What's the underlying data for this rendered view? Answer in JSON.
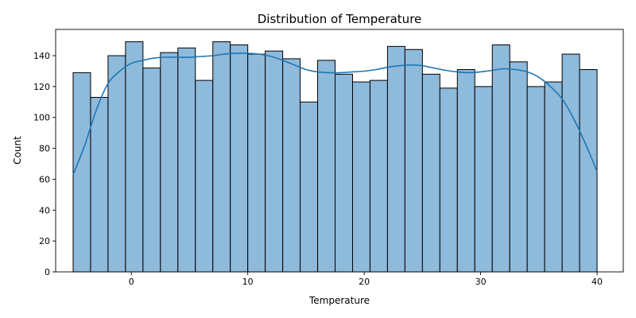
{
  "chart_data": {
    "type": "bar",
    "title": "Distribution of Temperature",
    "xlabel": "Temperature",
    "ylabel": "Count",
    "xlim": [
      -6.5,
      42.25
    ],
    "ylim": [
      0,
      157
    ],
    "xticks": [
      0,
      10,
      20,
      30,
      40
    ],
    "yticks": [
      0,
      20,
      40,
      60,
      80,
      100,
      120,
      140
    ],
    "bin_start": -5,
    "bin_end": 40,
    "bar_color": "#8ebadb",
    "edge_color": "#000000",
    "kde_color": "#1f77b4",
    "grid": false,
    "legend": "none",
    "counts": [
      129,
      113,
      140,
      149,
      132,
      142,
      145,
      124,
      149,
      147,
      141,
      143,
      138,
      110,
      137,
      128,
      123,
      124,
      146,
      144,
      128,
      119,
      131,
      120,
      147,
      136,
      120,
      123,
      141,
      131
    ],
    "kde": {
      "x": [
        -5,
        -4,
        -3,
        -2,
        -1,
        0,
        1,
        2,
        3,
        4,
        5,
        6,
        7,
        8,
        9,
        10,
        11,
        12,
        13,
        14,
        15,
        16,
        17,
        18,
        19,
        20,
        21,
        22,
        23,
        24,
        25,
        26,
        27,
        28,
        29,
        30,
        31,
        32,
        33,
        34,
        35,
        36,
        37,
        38,
        39,
        40
      ],
      "y": [
        63,
        82,
        105,
        122,
        130,
        135,
        137,
        138.5,
        139,
        139,
        139,
        139.5,
        140,
        141,
        141.5,
        141.5,
        141,
        139.5,
        137,
        134,
        131,
        129.5,
        129,
        129,
        129.5,
        130,
        131,
        132.5,
        133.5,
        134,
        133.5,
        132,
        130.5,
        129.5,
        129,
        129.5,
        130.5,
        131.5,
        131,
        129.5,
        126,
        120,
        112,
        99,
        83,
        65
      ]
    }
  }
}
